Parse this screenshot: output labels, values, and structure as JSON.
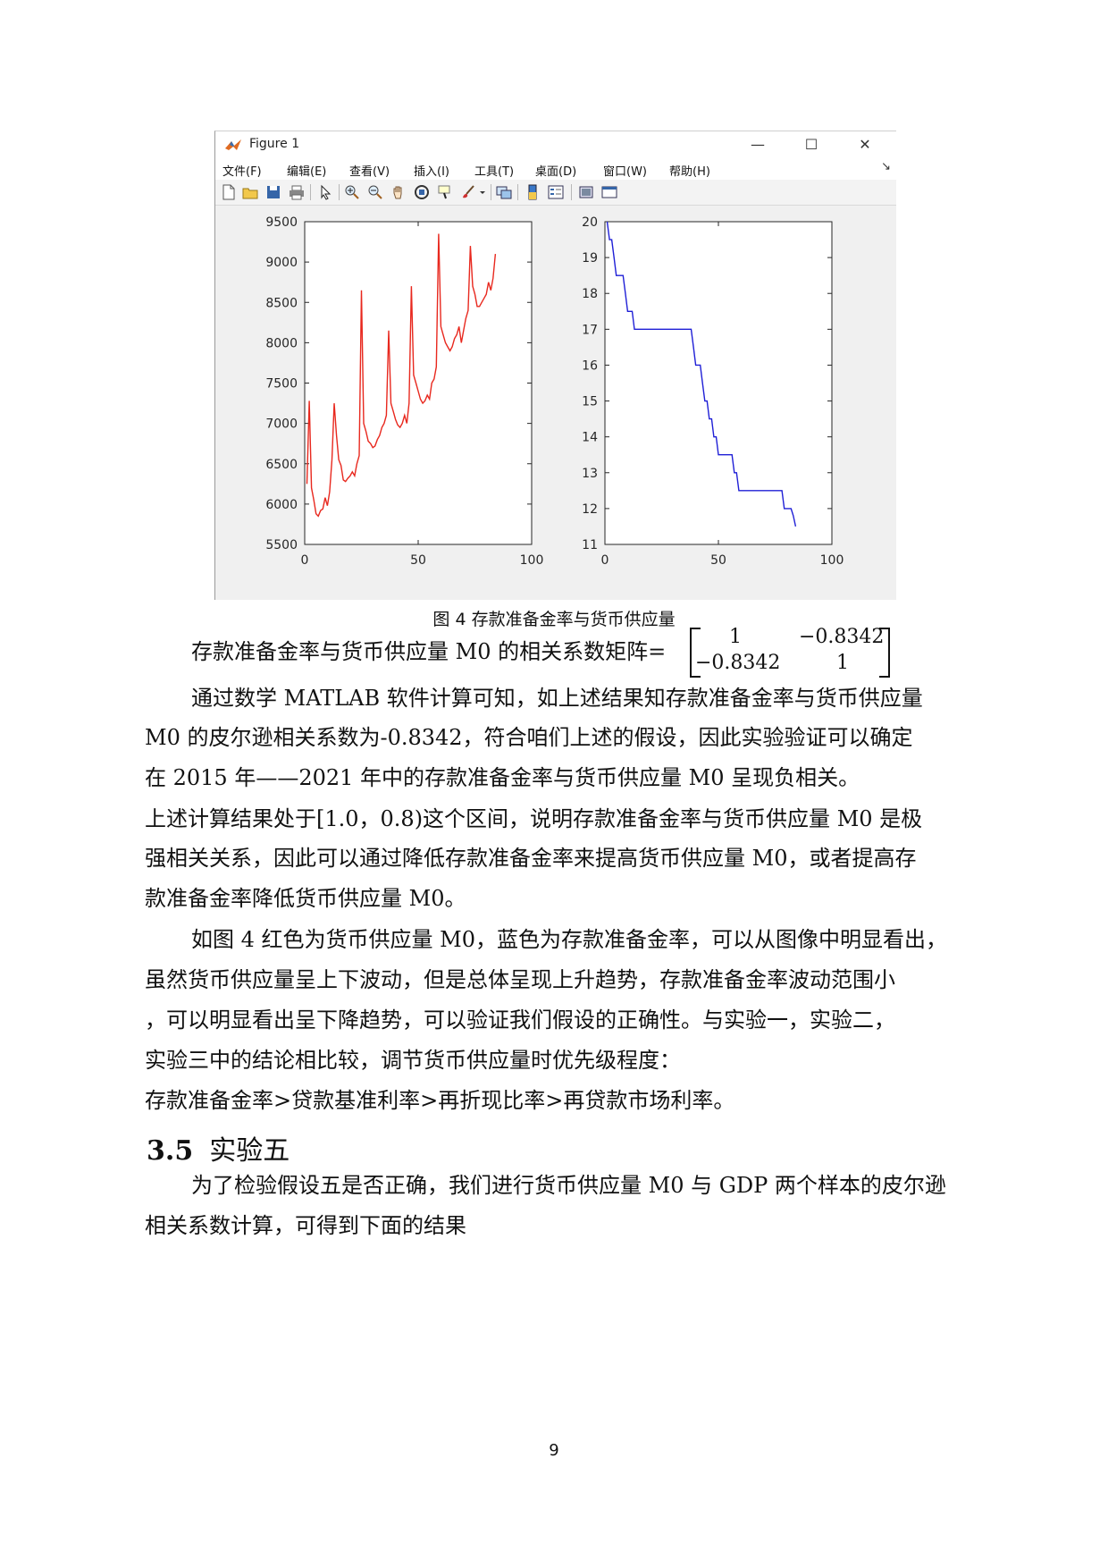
{
  "figure_window": {
    "title": "Figure 1",
    "controls": {
      "minimize": "—",
      "maximize": "☐",
      "close": "✕"
    },
    "menu": [
      "文件(F)",
      "编辑(E)",
      "查看(V)",
      "插入(I)",
      "工具(T)",
      "桌面(D)",
      "窗口(W)",
      "帮助(H)"
    ],
    "menu_arrow": "↘",
    "toolbar_icons": [
      "new-figure-icon",
      "open-file-icon",
      "save-icon",
      "print-icon",
      "edit-plot-arrow-icon",
      "zoom-in-icon",
      "zoom-out-icon",
      "pan-hand-icon",
      "rotate-3d-icon",
      "data-cursor-icon",
      "brush-icon",
      "brush-dropdown-icon",
      "link-plot-icon",
      "colorbar-icon",
      "legend-icon",
      "hide-plot-tools-icon",
      "show-plot-tools-icon"
    ]
  },
  "chart_data": [
    {
      "type": "line",
      "color": "#e8281e",
      "x_range": [
        0,
        100
      ],
      "ylim": [
        5500,
        9500
      ],
      "xticks": [
        "0",
        "50",
        "100"
      ],
      "yticks": [
        "5500",
        "6000",
        "6500",
        "7000",
        "7500",
        "8000",
        "8500",
        "9000",
        "9500"
      ],
      "x": [
        1,
        2,
        3,
        4,
        5,
        6,
        7,
        8,
        9,
        10,
        11,
        12,
        13,
        14,
        15,
        16,
        17,
        18,
        19,
        20,
        21,
        22,
        23,
        24,
        25,
        26,
        27,
        28,
        29,
        30,
        31,
        32,
        33,
        34,
        35,
        36,
        37,
        38,
        39,
        40,
        41,
        42,
        43,
        44,
        45,
        46,
        47,
        48,
        49,
        50,
        51,
        52,
        53,
        54,
        55,
        56,
        57,
        58,
        59,
        60,
        61,
        62,
        63,
        64,
        65,
        66,
        67,
        68,
        69,
        70,
        71,
        72,
        73,
        74,
        75,
        76,
        77,
        78,
        79,
        80,
        81,
        82,
        83,
        84
      ],
      "y": [
        6250,
        7280,
        6200,
        6050,
        5880,
        5850,
        5920,
        5940,
        6080,
        5980,
        6150,
        6550,
        7250,
        6850,
        6550,
        6480,
        6300,
        6280,
        6320,
        6350,
        6400,
        6350,
        6500,
        6600,
        8650,
        7000,
        6900,
        6780,
        6750,
        6700,
        6720,
        6800,
        6850,
        6950,
        7000,
        7100,
        8150,
        7250,
        7150,
        7050,
        6980,
        6950,
        7000,
        7100,
        7000,
        7250,
        8700,
        7600,
        7500,
        7400,
        7300,
        7250,
        7280,
        7350,
        7300,
        7500,
        7550,
        7700,
        9350,
        8200,
        8100,
        8000,
        7950,
        7900,
        7950,
        8050,
        8100,
        8200,
        8000,
        8150,
        8300,
        8400,
        9200,
        8700,
        8600,
        8450,
        8450,
        8500,
        8550,
        8600,
        8750,
        8650,
        8800,
        9100
      ]
    },
    {
      "type": "line",
      "color": "#1f1fd6",
      "x_range": [
        0,
        100
      ],
      "ylim": [
        11,
        20
      ],
      "xticks": [
        "0",
        "50",
        "100"
      ],
      "yticks": [
        "11",
        "12",
        "13",
        "14",
        "15",
        "16",
        "17",
        "18",
        "19",
        "20"
      ],
      "x": [
        1,
        2,
        3,
        4,
        5,
        6,
        7,
        8,
        9,
        10,
        11,
        12,
        13,
        14,
        15,
        16,
        17,
        18,
        19,
        20,
        21,
        22,
        23,
        24,
        25,
        26,
        27,
        28,
        29,
        30,
        31,
        32,
        33,
        34,
        35,
        36,
        37,
        38,
        39,
        40,
        41,
        42,
        43,
        44,
        45,
        46,
        47,
        48,
        49,
        50,
        51,
        52,
        53,
        54,
        55,
        56,
        57,
        58,
        59,
        60,
        61,
        62,
        63,
        64,
        65,
        66,
        67,
        68,
        69,
        70,
        71,
        72,
        73,
        74,
        75,
        76,
        77,
        78,
        79,
        80,
        81,
        82,
        83,
        84
      ],
      "y": [
        20,
        19.5,
        19.5,
        19,
        18.5,
        18.5,
        18.5,
        18.5,
        18,
        17.5,
        17.5,
        17.5,
        17,
        17,
        17,
        17,
        17,
        17,
        17,
        17,
        17,
        17,
        17,
        17,
        17,
        17,
        17,
        17,
        17,
        17,
        17,
        17,
        17,
        17,
        17,
        17,
        17,
        17,
        16.5,
        16,
        16,
        16,
        15.5,
        15,
        15,
        14.5,
        14.5,
        14,
        14,
        13.5,
        13.5,
        13.5,
        13.5,
        13.5,
        13.5,
        13.5,
        13,
        13,
        12.5,
        12.5,
        12.5,
        12.5,
        12.5,
        12.5,
        12.5,
        12.5,
        12.5,
        12.5,
        12.5,
        12.5,
        12.5,
        12.5,
        12.5,
        12.5,
        12.5,
        12.5,
        12.5,
        12.5,
        12,
        12,
        12,
        12,
        11.8,
        11.5
      ]
    }
  ],
  "caption": "图  4  存款准备金率与货币供应量",
  "matrix_line": {
    "prefix": "存款准备金率与货币供应量 M0 的相关系数矩阵=",
    "cells": {
      "a11": "1",
      "a12": "−0.8342",
      "a21": "−0.8342",
      "a22": "1"
    }
  },
  "paragraphs": [
    "通过数学 MATLAB 软件计算可知，如上述结果知存款准备金率与货币供应量",
    "M0 的皮尔逊相关系数为-0.8342，符合咱们上述的假设，因此实验验证可以确定",
    "在 2015 年——2021 年中的存款准备金率与货币供应量 M0 呈现负相关。",
    "上述计算结果处于[1.0，0.8)这个区间，说明存款准备金率与货币供应量 M0 是极",
    "强相关关系，因此可以通过降低存款准备金率来提高货币供应量 M0，或者提高存",
    "款准备金率降低货币供应量 M0。",
    "如图 4 红色为货币供应量 M0，蓝色为存款准备金率，可以从图像中明显看出，",
    "虽然货币供应量呈上下波动，但是总体呈现上升趋势，存款准备金率波动范围小",
    "，可以明显看出呈下降趋势，可以验证我们假设的正确性。与实验一，实验二，",
    "实验三中的结论相比较，调节货币供应量时优先级程度：",
    "存款准备金率>贷款基准利率>再折现比率>再贷款市场利率。"
  ],
  "section": {
    "number": "3.5",
    "title": "实验五"
  },
  "section_paragraphs": [
    "为了检验假设五是否正确，我们进行货币供应量 M0 与 GDP 两个样本的皮尔逊",
    "相关系数计算，可得到下面的结果"
  ],
  "page_number": "9"
}
